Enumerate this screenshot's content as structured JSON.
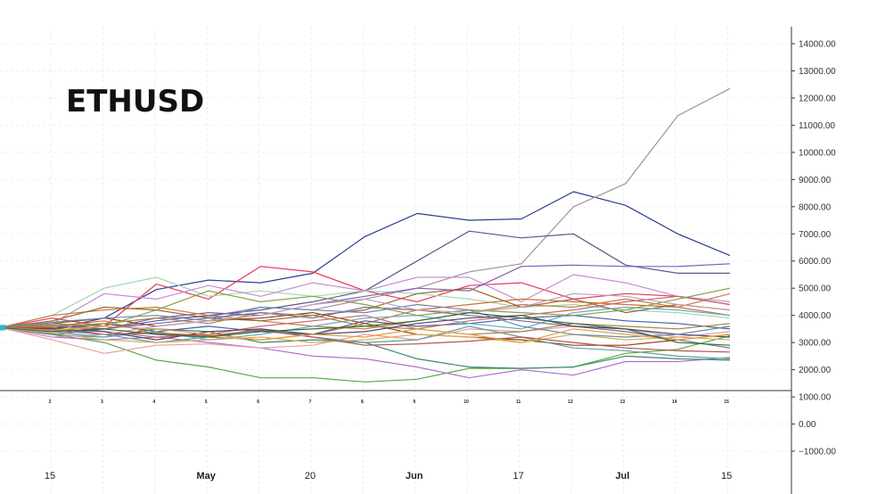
{
  "title": "ETHUSD",
  "chart_data": {
    "type": "line",
    "title": "ETHUSD",
    "ylim": [
      -1000,
      14000
    ],
    "y_ticks": [
      "14000.00",
      "13000.00",
      "12000.00",
      "11000.00",
      "10000.00",
      "9000.00",
      "8000.00",
      "7000.00",
      "6000.00",
      "5000.00",
      "4000.00",
      "3000.00",
      "2000.00",
      "1000.00",
      "0.00",
      "−1000.00"
    ],
    "y_tick_values": [
      14000,
      13000,
      12000,
      11000,
      10000,
      9000,
      8000,
      7000,
      6000,
      5000,
      4000,
      3000,
      2000,
      1000,
      0,
      -1000
    ],
    "inner_x_ticks": [
      "2",
      "3",
      "4",
      "5",
      "6",
      "7",
      "8",
      "9",
      "10",
      "11",
      "12",
      "13",
      "14",
      "15"
    ],
    "x_ticks": [
      {
        "label": "15",
        "bold": false,
        "x": 1
      },
      {
        "label": "May",
        "bold": true,
        "x": 4
      },
      {
        "label": "20",
        "bold": false,
        "x": 6
      },
      {
        "label": "Jun",
        "bold": true,
        "x": 8
      },
      {
        "label": "17",
        "bold": false,
        "x": 10
      },
      {
        "label": "Jul",
        "bold": true,
        "x": 12
      },
      {
        "label": "15",
        "bold": false,
        "x": 14
      }
    ],
    "x": [
      0,
      1,
      2,
      3,
      4,
      5,
      6,
      7,
      8,
      9,
      10,
      11,
      12,
      13,
      14
    ],
    "grid": true,
    "series": [
      {
        "color": "#2a3f8f",
        "values": [
          3550,
          3500,
          3900,
          4950,
          5300,
          5200,
          5550,
          6900,
          7750,
          7500,
          7550,
          8550,
          8050,
          7000,
          6200
        ]
      },
      {
        "color": "#a88fa0",
        "values": [
          3550,
          3400,
          3700,
          3900,
          3950,
          4300,
          4200,
          4600,
          5000,
          5600,
          5900,
          8000,
          8850,
          11350,
          12350
        ]
      },
      {
        "color": "#5b5a8a",
        "values": [
          3550,
          3600,
          3500,
          3800,
          4000,
          4200,
          4500,
          4900,
          6000,
          7100,
          6850,
          7000,
          5850,
          5550,
          5550
        ]
      },
      {
        "color": "#e8385a",
        "values": [
          3550,
          3900,
          3600,
          5150,
          4600,
          5800,
          5600,
          4900,
          4500,
          5100,
          5200,
          4600,
          4800,
          4700,
          4400
        ]
      },
      {
        "color": "#a0d8b0",
        "values": [
          3550,
          4000,
          5000,
          5400,
          4700,
          4900,
          4700,
          4900,
          4800,
          4600,
          4300,
          4400,
          4200,
          4100,
          3900
        ]
      },
      {
        "color": "#c98bd6",
        "values": [
          3550,
          3700,
          4800,
          4600,
          5100,
          4700,
          5200,
          4900,
          5400,
          5400,
          4500,
          5500,
          5200,
          4700,
          4500
        ]
      },
      {
        "color": "#7b5fb8",
        "values": [
          3550,
          3700,
          3500,
          3900,
          4100,
          4000,
          4400,
          4700,
          5000,
          4900,
          5800,
          5850,
          5800,
          5800,
          5900
        ]
      },
      {
        "color": "#55aa44",
        "values": [
          3550,
          3300,
          3000,
          2350,
          2100,
          1700,
          1700,
          1550,
          1650,
          2050,
          2050,
          2100,
          2600,
          2750,
          3250
        ]
      },
      {
        "color": "#b070d0",
        "values": [
          3550,
          3200,
          3100,
          3200,
          3000,
          2800,
          2500,
          2400,
          2100,
          1700,
          2000,
          1800,
          2300,
          2300,
          2450
        ]
      },
      {
        "color": "#c08040",
        "values": [
          3550,
          4000,
          4200,
          4300,
          4000,
          3800,
          3600,
          3500,
          3800,
          4100,
          4400,
          4300,
          4600,
          4300,
          4800
        ]
      },
      {
        "color": "#3a8a6a",
        "values": [
          3550,
          3300,
          3200,
          3500,
          3400,
          3000,
          3100,
          3000,
          2400,
          2100,
          2050,
          2100,
          2500,
          2400,
          2350
        ]
      },
      {
        "color": "#d07030",
        "values": [
          3550,
          3600,
          3800,
          3300,
          3200,
          3100,
          3300,
          3700,
          4200,
          4400,
          4600,
          4500,
          4400,
          4300,
          4000
        ]
      },
      {
        "color": "#e6a0a0",
        "values": [
          3550,
          3100,
          2600,
          2900,
          2950,
          2800,
          2900,
          3300,
          3100,
          3500,
          3400,
          3600,
          3500,
          3200,
          3400
        ]
      },
      {
        "color": "#4060a0",
        "values": [
          3550,
          3500,
          3700,
          3400,
          3600,
          3400,
          3300,
          3800,
          3600,
          3700,
          3900,
          4000,
          3800,
          3700,
          3500
        ]
      },
      {
        "color": "#8b4513",
        "values": [
          3550,
          3700,
          3900,
          3600,
          3800,
          3900,
          4100,
          3700,
          3300,
          3200,
          3100,
          2900,
          2900,
          3100,
          3300
        ]
      },
      {
        "color": "#5f9ea0",
        "values": [
          3550,
          3450,
          3300,
          3000,
          3200,
          3500,
          3200,
          3000,
          3100,
          3600,
          3200,
          2800,
          2700,
          2500,
          2400
        ]
      },
      {
        "color": "#996633",
        "values": [
          3550,
          3800,
          4300,
          4200,
          3900,
          3800,
          4000,
          4200,
          4800,
          5000,
          4300,
          4600,
          4100,
          4400,
          4200
        ]
      },
      {
        "color": "#cc6666",
        "values": [
          3550,
          3650,
          3400,
          3200,
          3300,
          3600,
          3800,
          4000,
          3500,
          3800,
          4000,
          4200,
          4500,
          4700,
          4400
        ]
      },
      {
        "color": "#66aacc",
        "values": [
          3550,
          3400,
          3200,
          3400,
          3100,
          3300,
          3600,
          3900,
          4000,
          3700,
          3500,
          4100,
          4300,
          4200,
          4000
        ]
      },
      {
        "color": "#aa8844",
        "values": [
          3550,
          3600,
          3700,
          3900,
          3700,
          4100,
          4000,
          3600,
          3500,
          3300,
          3400,
          3700,
          3600,
          3500,
          3700
        ]
      },
      {
        "color": "#7a6a9a",
        "values": [
          3550,
          3300,
          3500,
          3700,
          3900,
          4100,
          3900,
          4300,
          4200,
          4000,
          3800,
          3600,
          3400,
          3100,
          2800
        ]
      },
      {
        "color": "#d4b060",
        "values": [
          3550,
          3350,
          3100,
          3000,
          3100,
          3200,
          3000,
          3100,
          3300,
          3200,
          3000,
          3300,
          3100,
          3200,
          3100
        ]
      },
      {
        "color": "#4a4a6a",
        "values": [
          3550,
          3500,
          3400,
          3100,
          3400,
          3500,
          3300,
          3400,
          3700,
          3900,
          4000,
          3600,
          3500,
          3300,
          3200
        ]
      },
      {
        "color": "#8aa040",
        "values": [
          3550,
          3700,
          3600,
          4200,
          4900,
          4500,
          4700,
          4400,
          4000,
          4200,
          4100,
          4000,
          4200,
          4600,
          5000
        ]
      },
      {
        "color": "#b05050",
        "values": [
          3550,
          3550,
          3300,
          3350,
          3250,
          3450,
          3200,
          2900,
          2950,
          3050,
          3200,
          3000,
          2800,
          2700,
          2650
        ]
      },
      {
        "color": "#6a8ab0",
        "values": [
          3550,
          3750,
          3900,
          4000,
          3800,
          4300,
          4200,
          4100,
          4400,
          4200,
          3600,
          3300,
          3200,
          3300,
          3600
        ]
      },
      {
        "color": "#c0a0c0",
        "values": [
          3550,
          3200,
          3300,
          3600,
          3800,
          4000,
          4400,
          4600,
          4200,
          4100,
          4300,
          4800,
          4700,
          4400,
          4200
        ]
      },
      {
        "color": "#e8a040",
        "values": [
          3550,
          3450,
          3600,
          3500,
          3300,
          3100,
          3300,
          3200,
          3500,
          3300,
          3000,
          3500,
          3300,
          3100,
          3300
        ]
      },
      {
        "color": "#3a6a3a",
        "values": [
          3550,
          3400,
          3500,
          3300,
          3200,
          3400,
          3500,
          3600,
          3800,
          4100,
          3900,
          3700,
          3500,
          3000,
          2900
        ]
      }
    ]
  }
}
